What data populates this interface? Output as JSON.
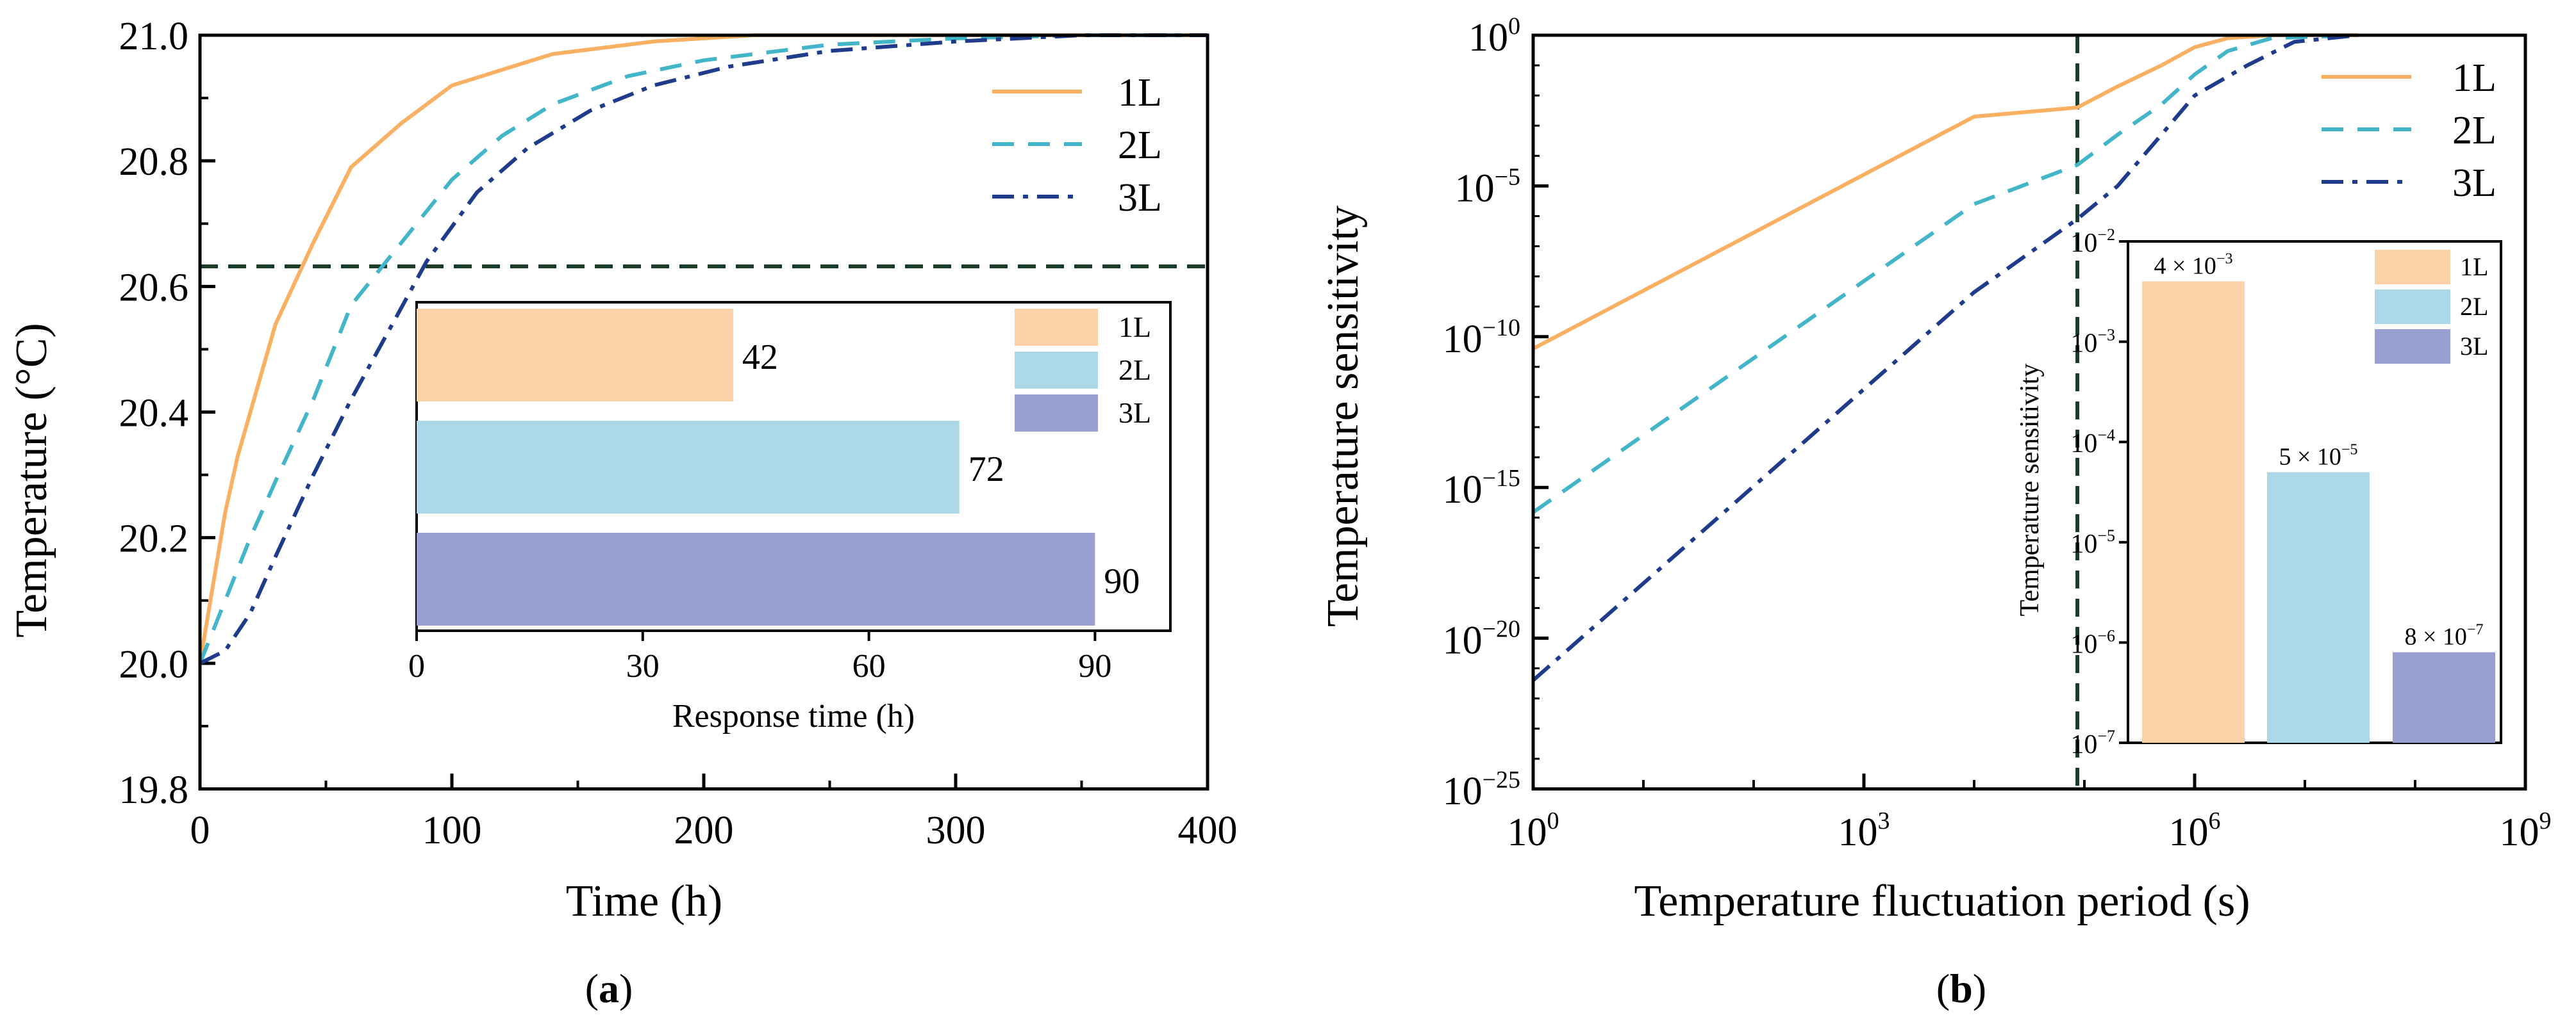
{
  "figure": {
    "label_a": "a",
    "label_b": "b"
  },
  "colors": {
    "1L": "#f9b062",
    "2L": "#42b5c9",
    "3L": "#1f3c8c",
    "dash": "#1a3d2a",
    "bar_1L": "#fcd3a8",
    "bar_2L": "#acd8e7",
    "bar_3L": "#9a9fd1"
  },
  "chart_data": [
    {
      "id": "a",
      "type": "line",
      "xlabel": "Time (h)",
      "ylabel": "Temperature (°C)",
      "xlim": [
        0,
        400
      ],
      "ylim": [
        19.8,
        21.0
      ],
      "xticks": [
        "0",
        "100",
        "200",
        "300",
        "400"
      ],
      "yticks": [
        "19.8",
        "20.0",
        "20.2",
        "20.4",
        "20.6",
        "20.8",
        "21.0"
      ],
      "legend_position": "top-right",
      "reference_line": {
        "orientation": "horizontal",
        "y": 20.632,
        "style": "dashed"
      },
      "series": [
        {
          "name": "1L",
          "style": "solid",
          "points": [
            [
              0,
              20.0
            ],
            [
              5,
              20.12
            ],
            [
              10,
              20.24
            ],
            [
              15,
              20.33
            ],
            [
              20,
              20.4
            ],
            [
              30,
              20.54
            ],
            [
              45,
              20.67
            ],
            [
              60,
              20.79
            ],
            [
              80,
              20.86
            ],
            [
              100,
              20.92
            ],
            [
              120,
              20.945
            ],
            [
              140,
              20.97
            ],
            [
              180,
              20.99
            ],
            [
              220,
              21.0
            ],
            [
              300,
              21.0
            ],
            [
              400,
              21.0
            ]
          ]
        },
        {
          "name": "2L",
          "style": "dashed",
          "points": [
            [
              0,
              20.0
            ],
            [
              10,
              20.1
            ],
            [
              20,
              20.2
            ],
            [
              30,
              20.29
            ],
            [
              45,
              20.42
            ],
            [
              60,
              20.57
            ],
            [
              80,
              20.67
            ],
            [
              100,
              20.77
            ],
            [
              120,
              20.84
            ],
            [
              140,
              20.89
            ],
            [
              170,
              20.935
            ],
            [
              200,
              20.96
            ],
            [
              250,
              20.985
            ],
            [
              300,
              20.995
            ],
            [
              350,
              21.0
            ],
            [
              400,
              21.0
            ]
          ]
        },
        {
          "name": "3L",
          "style": "dash-dot",
          "points": [
            [
              0,
              20.0
            ],
            [
              10,
              20.02
            ],
            [
              20,
              20.08
            ],
            [
              30,
              20.17
            ],
            [
              45,
              20.3
            ],
            [
              60,
              20.42
            ],
            [
              75,
              20.53
            ],
            [
              90,
              20.64
            ],
            [
              110,
              20.75
            ],
            [
              130,
              20.82
            ],
            [
              155,
              20.88
            ],
            [
              180,
              20.92
            ],
            [
              210,
              20.95
            ],
            [
              250,
              20.975
            ],
            [
              300,
              20.99
            ],
            [
              350,
              21.0
            ],
            [
              400,
              21.0
            ]
          ]
        }
      ],
      "inset": {
        "type": "bar",
        "orientation": "horizontal",
        "xlabel": "Response time (h)",
        "xlim": [
          0,
          100
        ],
        "xticks": [
          "0",
          "30",
          "60",
          "90"
        ],
        "legend_position": "top-right",
        "categories": [
          "1L",
          "2L",
          "3L"
        ],
        "values": [
          42,
          72,
          90
        ],
        "value_labels": [
          "42",
          "72",
          "90"
        ]
      }
    },
    {
      "id": "b",
      "type": "line",
      "xlabel": "Temperature fluctuation period (s)",
      "ylabel": "Temperature sensitivity",
      "xscale": "log",
      "yscale": "log",
      "xlim": [
        1,
        1000000000
      ],
      "ylim": [
        1e-25,
        1
      ],
      "xtick_mantissa": [
        "10",
        "10",
        "10",
        "10"
      ],
      "xtick_exponents": [
        "0",
        "3",
        "6",
        "9"
      ],
      "ytick_mantissa": [
        "10",
        "10",
        "10",
        "10",
        "10",
        "10"
      ],
      "ytick_exponents": [
        "−25",
        "−20",
        "−15",
        "−10",
        "−5",
        "0"
      ],
      "legend_position": "top-right",
      "reference_line": {
        "orientation": "vertical",
        "x": 86400,
        "style": "dashed"
      },
      "series": [
        {
          "name": "1L",
          "style": "solid",
          "points": [
            [
              1,
              4e-11
            ],
            [
              10000,
              0.002
            ],
            [
              86400,
              0.004
            ],
            [
              200000,
              0.02
            ],
            [
              500000,
              0.1
            ],
            [
              1000000,
              0.4
            ],
            [
              2000000,
              0.8
            ],
            [
              5000000,
              1
            ],
            [
              30000000,
              1
            ]
          ]
        },
        {
          "name": "2L",
          "style": "dashed",
          "points": [
            [
              1,
              1.5e-16
            ],
            [
              10000,
              2.5e-06
            ],
            [
              86400,
              5e-05
            ],
            [
              200000,
              0.0005
            ],
            [
              500000,
              0.005
            ],
            [
              1000000,
              0.05
            ],
            [
              2000000,
              0.3
            ],
            [
              5000000,
              0.8
            ],
            [
              30000000,
              1
            ]
          ]
        },
        {
          "name": "3L",
          "style": "dash-dot",
          "points": [
            [
              1,
              4e-22
            ],
            [
              10000,
              3e-09
            ],
            [
              86400,
              8e-07
            ],
            [
              200000,
              1e-05
            ],
            [
              500000,
              0.0005
            ],
            [
              1000000,
              0.01
            ],
            [
              3000000,
              0.1
            ],
            [
              8000000,
              0.6
            ],
            [
              30000000,
              1
            ]
          ]
        }
      ],
      "inset": {
        "type": "bar",
        "orientation": "vertical",
        "ylabel": "Temperature sensitivity",
        "yscale": "log",
        "ylim": [
          1e-07,
          0.01
        ],
        "ytick_mantissa": [
          "10",
          "10",
          "10",
          "10",
          "10",
          "10"
        ],
        "ytick_exponents": [
          "−7",
          "−6",
          "−5",
          "−4",
          "−3",
          "−2"
        ],
        "legend_position": "top-right",
        "categories": [
          "1L",
          "2L",
          "3L"
        ],
        "values": [
          0.004,
          5e-05,
          8e-07
        ],
        "value_label_mantissa": [
          "4 × 10",
          "5 × 10",
          "8 × 10"
        ],
        "value_label_exponents": [
          "−3",
          "−5",
          "−7"
        ]
      }
    }
  ]
}
